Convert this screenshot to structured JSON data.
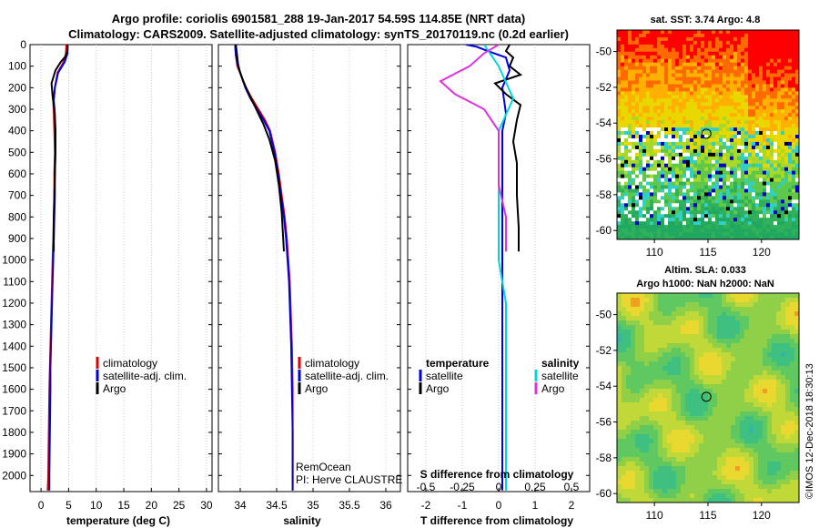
{
  "header": {
    "title_line1": "Argo profile: coriolis 6901581_288 19-Jan-2017 54.59S 114.85E (NRT data)",
    "title_line2": "Climatology: CARS2009. Satellite-adjusted climatology: synTS_20170119.nc (0.2d earlier)"
  },
  "colors": {
    "climatology": "#e00000",
    "satellite": "#0000e0",
    "argo": "#000000",
    "sat_salinity": "#00d8d8",
    "argo_salinity": "#e030e0"
  },
  "chart_data": [
    {
      "type": "line",
      "name": "temperature",
      "xlabel": "temperature (deg C)",
      "ylabel": "",
      "xlim": [
        -2,
        31
      ],
      "ylim": [
        2075,
        0
      ],
      "xticks": [
        0,
        5,
        10,
        15,
        20,
        25,
        30
      ],
      "yticks": [
        0,
        100,
        200,
        300,
        400,
        500,
        600,
        700,
        800,
        900,
        1000,
        1100,
        1200,
        1300,
        1400,
        1500,
        1600,
        1700,
        1800,
        1900,
        2000
      ],
      "legend": [
        "climatology",
        "satellite-adj. clim.",
        "Argo"
      ],
      "legend_position": "bottom-right",
      "series": [
        {
          "name": "climatology",
          "color": "#e00000",
          "x": [
            4.6,
            4.5,
            4.1,
            3.0,
            2.5,
            2.2,
            2.3,
            2.4,
            2.5,
            2.4,
            2.4,
            2.3,
            2.2,
            2.1,
            2.0,
            1.9,
            1.8,
            1.7,
            1.6,
            1.5,
            1.4,
            1.3,
            1.2
          ],
          "y": [
            0,
            40,
            80,
            130,
            200,
            260,
            320,
            400,
            500,
            600,
            700,
            800,
            900,
            1000,
            1100,
            1200,
            1300,
            1400,
            1500,
            1600,
            1800,
            2000,
            2070
          ]
        },
        {
          "name": "satellite-adj. clim.",
          "color": "#0000e0",
          "x": [
            4.8,
            4.8,
            4.3,
            3.1,
            2.5,
            2.3,
            2.5,
            2.6,
            2.6,
            2.5,
            2.5,
            2.4,
            2.3,
            2.2,
            2.1,
            2.0,
            1.9,
            1.8,
            1.7,
            1.7,
            1.6,
            1.5,
            1.5
          ],
          "y": [
            0,
            40,
            80,
            130,
            200,
            260,
            320,
            400,
            500,
            600,
            700,
            800,
            900,
            1000,
            1100,
            1200,
            1300,
            1400,
            1500,
            1600,
            1800,
            2000,
            2070
          ]
        },
        {
          "name": "Argo",
          "color": "#000000",
          "x": [
            4.8,
            4.8,
            4.6,
            3.6,
            2.6,
            1.9,
            2.1,
            2.4,
            2.6,
            2.6,
            2.5,
            2.4,
            2.3,
            2.3
          ],
          "y": [
            0,
            20,
            50,
            80,
            120,
            180,
            240,
            300,
            400,
            500,
            600,
            700,
            800,
            960
          ]
        }
      ]
    },
    {
      "type": "line",
      "name": "salinity",
      "xlabel": "salinity",
      "xlim": [
        33.7,
        36.2
      ],
      "ylim": [
        2075,
        0
      ],
      "xticks": [
        34,
        34.5,
        35,
        35.5,
        36
      ],
      "legend": [
        "climatology",
        "satellite-adj. clim.",
        "Argo"
      ],
      "legend_position": "bottom-right",
      "annotations": [
        "RemOcean",
        "PI: Herve CLAUSTRE"
      ],
      "series": [
        {
          "name": "climatology",
          "color": "#e00000",
          "x": [
            33.93,
            33.94,
            33.96,
            34.02,
            34.08,
            34.16,
            34.25,
            34.34,
            34.41,
            34.48,
            34.53,
            34.57,
            34.61,
            34.64,
            34.66,
            34.68,
            34.69,
            34.7,
            34.71,
            34.72,
            34.72,
            34.72,
            34.72
          ],
          "y": [
            0,
            50,
            100,
            150,
            200,
            250,
            300,
            350,
            400,
            500,
            600,
            700,
            800,
            900,
            1000,
            1100,
            1200,
            1300,
            1400,
            1600,
            1800,
            2000,
            2070
          ]
        },
        {
          "name": "satellite-adj. clim.",
          "color": "#0000e0",
          "x": [
            33.93,
            33.94,
            33.97,
            34.02,
            34.07,
            34.14,
            34.23,
            34.32,
            34.4,
            34.47,
            34.52,
            34.56,
            34.6,
            34.63,
            34.65,
            34.67,
            34.68,
            34.69,
            34.7,
            34.71,
            34.72,
            34.72,
            34.72
          ],
          "y": [
            0,
            50,
            100,
            150,
            200,
            250,
            300,
            350,
            400,
            500,
            600,
            700,
            800,
            900,
            1000,
            1100,
            1200,
            1300,
            1400,
            1600,
            1800,
            2000,
            2070
          ]
        },
        {
          "name": "Argo",
          "color": "#000000",
          "x": [
            33.94,
            33.95,
            33.96,
            33.97,
            33.99,
            34.04,
            34.12,
            34.22,
            34.32,
            34.4,
            34.48,
            34.53,
            34.57,
            34.6
          ],
          "y": [
            0,
            30,
            60,
            90,
            120,
            170,
            230,
            300,
            370,
            440,
            540,
            650,
            780,
            960
          ]
        }
      ]
    },
    {
      "type": "line",
      "name": "difference",
      "xlabel": "T difference from climatology",
      "xlabel_top": "S difference from climatology",
      "xlim": [
        -2.5,
        2.5
      ],
      "ylim": [
        2075,
        0
      ],
      "xticks_T": [
        "-2",
        "-1",
        "0",
        "1",
        "2"
      ],
      "xticks_S": [
        "-0.5",
        "-0.25",
        "0",
        "0.25",
        "0.5"
      ],
      "legend_temperature": {
        "title": "temperature",
        "items": [
          "satellite",
          "Argo"
        ]
      },
      "legend_salinity": {
        "title": "salinity",
        "items": [
          "satellite",
          "Argo"
        ]
      },
      "series": [
        {
          "name": "T satellite",
          "color": "#0000e0",
          "x": [
            -0.9,
            -0.6,
            -0.3,
            0.2,
            0.3,
            0.1,
            0.15,
            0.2,
            0.1,
            0.1,
            0.1,
            0.1,
            0.1,
            0.1,
            0.1,
            0.1,
            0.1
          ],
          "y": [
            0,
            10,
            30,
            60,
            120,
            200,
            260,
            320,
            400,
            500,
            600,
            800,
            1000,
            1200,
            1500,
            1800,
            2070
          ]
        },
        {
          "name": "T Argo",
          "color": "#000000",
          "x": [
            0.3,
            0.2,
            0.4,
            0.3,
            0.6,
            -0.1,
            0.2,
            0.6,
            0.5,
            0.4,
            0.5,
            0.5,
            0.55,
            0.55
          ],
          "y": [
            0,
            30,
            60,
            100,
            140,
            180,
            230,
            280,
            350,
            450,
            550,
            700,
            850,
            960
          ]
        },
        {
          "name": "S satellite",
          "color": "#00d8d8",
          "x": [
            -0.1,
            0.0,
            0.1,
            0.0,
            0.0,
            0.0,
            0.0,
            0.05,
            0.05,
            0.05,
            0.05
          ],
          "y": [
            0,
            100,
            250,
            400,
            600,
            800,
            1000,
            1200,
            1500,
            1800,
            2070
          ]
        },
        {
          "name": "S Argo",
          "color": "#e030e0",
          "x": [
            0.0,
            -0.1,
            -0.2,
            -0.4,
            -0.3,
            -0.1,
            0.0,
            0.0,
            0.0,
            0.05,
            0.05
          ],
          "y": [
            0,
            40,
            100,
            170,
            230,
            300,
            400,
            500,
            650,
            800,
            960
          ]
        }
      ]
    },
    {
      "type": "heatmap",
      "name": "sst-map",
      "title": "sat. SST: 3.74 Argo: 4.8",
      "xlim": [
        106.5,
        123.5
      ],
      "ylim": [
        -60.5,
        -48.8
      ],
      "xticks": [
        110,
        115,
        120
      ],
      "yticks": [
        -50,
        -52,
        -54,
        -56,
        -58,
        -60
      ],
      "marker": {
        "lon": 114.85,
        "lat": -54.59
      }
    },
    {
      "type": "heatmap",
      "name": "sla-map",
      "title": "Altim. SLA: 0.033",
      "subtitle": "Argo h1000: NaN h2000: NaN",
      "xlim": [
        106.5,
        123.5
      ],
      "ylim": [
        -60.5,
        -48.8
      ],
      "xticks": [
        110,
        115,
        120
      ],
      "yticks": [
        -50,
        -52,
        -54,
        -56,
        -58,
        -60
      ],
      "marker": {
        "lon": 114.85,
        "lat": -54.59
      }
    }
  ],
  "watermark": "©IMOS 12-Dec-2018 18:30:13"
}
